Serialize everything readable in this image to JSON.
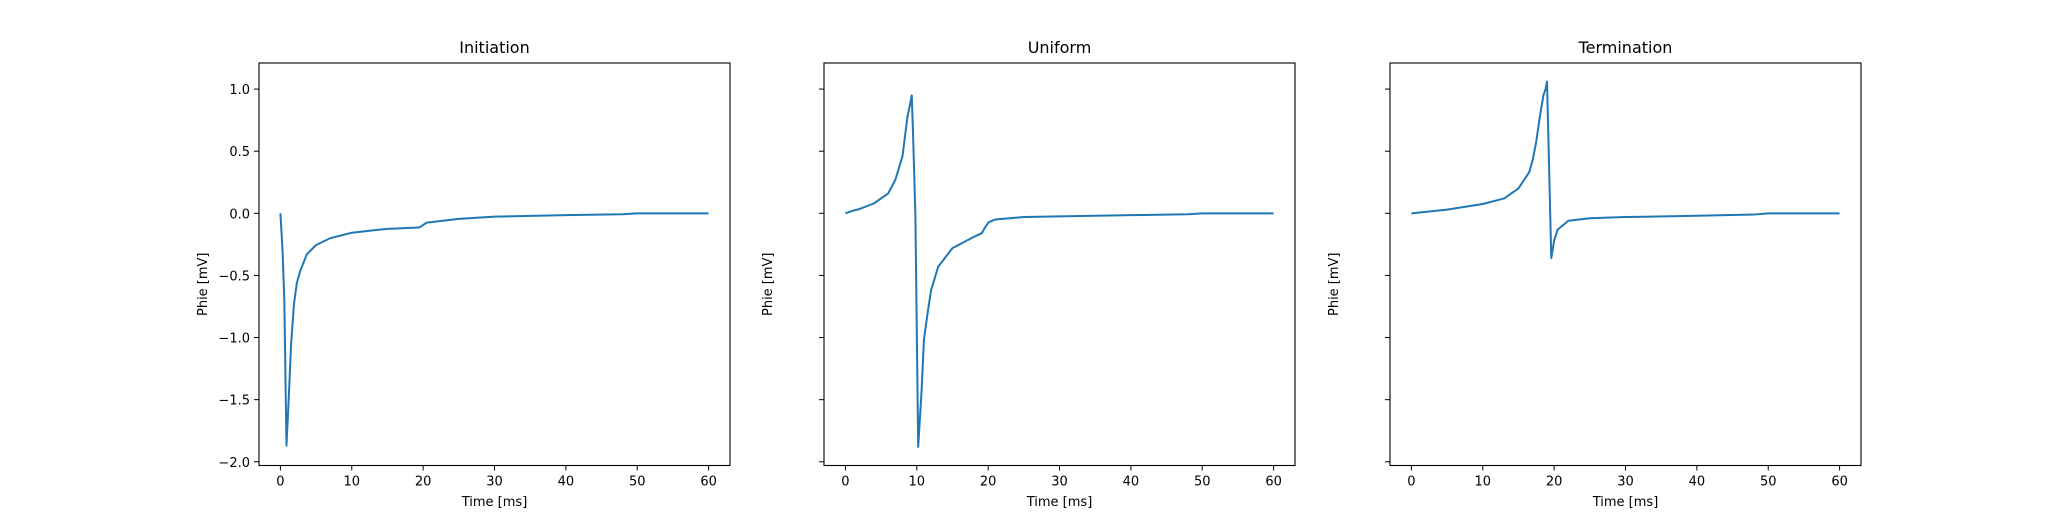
{
  "chart_data": [
    {
      "type": "line",
      "title": "Initiation",
      "xlabel": "Time [ms]",
      "ylabel": "Phie [mV]",
      "xlim": [
        -3,
        63
      ],
      "ylim": [
        -2.03,
        1.21
      ],
      "xticks": [
        0,
        10,
        20,
        30,
        40,
        50,
        60
      ],
      "yticks": [
        -2.0,
        -1.5,
        -1.0,
        -0.5,
        0.0,
        0.5,
        1.0
      ],
      "show_ytick_labels": true,
      "grid": false,
      "color": "#1f77b4",
      "x": [
        0,
        0.3,
        0.55,
        0.85,
        1.2,
        1.5,
        1.9,
        2.3,
        2.8,
        3.7,
        5,
        7,
        10,
        15,
        19,
        19.5,
        20.5,
        25,
        30,
        40,
        48,
        50,
        60
      ],
      "y": [
        0,
        -0.3,
        -0.7,
        -1.87,
        -1.45,
        -1.05,
        -0.73,
        -0.56,
        -0.46,
        -0.33,
        -0.255,
        -0.2,
        -0.156,
        -0.125,
        -0.115,
        -0.113,
        -0.075,
        -0.045,
        -0.027,
        -0.015,
        -0.008,
        0.0,
        0.0
      ]
    },
    {
      "type": "line",
      "title": "Uniform",
      "xlabel": "Time [ms]",
      "ylabel": "Phie [mV]",
      "xlim": [
        -3,
        63
      ],
      "ylim": [
        -2.03,
        1.21
      ],
      "xticks": [
        0,
        10,
        20,
        30,
        40,
        50,
        60
      ],
      "yticks": [
        -2.0,
        -1.5,
        -1.0,
        -0.5,
        0.0,
        0.5,
        1.0
      ],
      "show_ytick_labels": false,
      "grid": false,
      "color": "#1f77b4",
      "x": [
        0,
        1,
        2,
        4,
        6,
        7,
        8,
        8.7,
        9,
        9.3,
        9.5,
        9.8,
        10.2,
        10.7,
        11,
        11.5,
        12,
        13,
        15,
        18,
        19.1,
        19.6,
        20.1,
        21,
        25,
        30,
        40,
        48,
        50,
        60
      ],
      "y": [
        0,
        0.02,
        0.035,
        0.08,
        0.16,
        0.27,
        0.46,
        0.78,
        0.86,
        0.95,
        0.6,
        0.0,
        -1.88,
        -1.4,
        -1.02,
        -0.81,
        -0.62,
        -0.43,
        -0.28,
        -0.19,
        -0.16,
        -0.11,
        -0.07,
        -0.05,
        -0.03,
        -0.025,
        -0.015,
        -0.008,
        0.0,
        0.0
      ]
    },
    {
      "type": "line",
      "title": "Termination",
      "xlabel": "Time [ms]",
      "ylabel": "Phie [mV]",
      "xlim": [
        -3,
        63
      ],
      "ylim": [
        -2.03,
        1.21
      ],
      "xticks": [
        0,
        10,
        20,
        30,
        40,
        50,
        60
      ],
      "yticks": [
        -2.0,
        -1.5,
        -1.0,
        -0.5,
        0.0,
        0.5,
        1.0
      ],
      "show_ytick_labels": false,
      "grid": false,
      "color": "#1f77b4",
      "x": [
        0,
        5,
        10,
        13,
        15,
        16.5,
        17,
        17.5,
        18,
        18.5,
        18.8,
        19.0,
        19.2,
        19.6,
        20,
        20.5,
        22,
        25,
        30,
        40,
        48,
        50,
        60
      ],
      "y": [
        0,
        0.03,
        0.075,
        0.12,
        0.2,
        0.33,
        0.43,
        0.58,
        0.78,
        0.95,
        1.0,
        1.06,
        0.6,
        -0.36,
        -0.22,
        -0.13,
        -0.06,
        -0.04,
        -0.03,
        -0.02,
        -0.01,
        0.0,
        0.0
      ]
    }
  ]
}
